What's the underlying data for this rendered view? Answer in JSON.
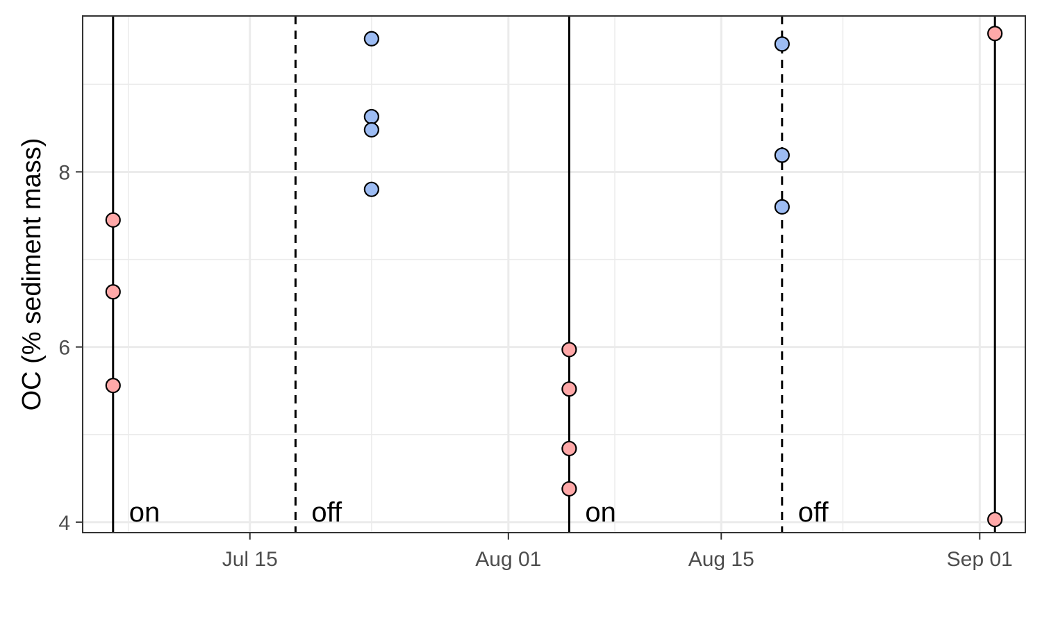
{
  "chart_data": {
    "type": "scatter",
    "title": "",
    "xlabel": "",
    "ylabel": "OC (% sediment mass)",
    "xlim": [
      "2019-07-04",
      "2019-09-04"
    ],
    "ylim": [
      3.88,
      9.78
    ],
    "grid": true,
    "legend": "none",
    "x_ticks": [
      {
        "date": "2019-07-15",
        "label": "Jul 15"
      },
      {
        "date": "2019-08-01",
        "label": "Aug 01"
      },
      {
        "date": "2019-08-15",
        "label": "Aug 15"
      },
      {
        "date": "2019-09-01",
        "label": "Sep 01"
      }
    ],
    "x_minor_ticks": [
      "2019-07-07",
      "2019-07-23",
      "2019-08-08",
      "2019-08-23"
    ],
    "y_ticks": [
      4,
      6,
      8
    ],
    "y_minor_ticks": [
      5,
      7,
      9
    ],
    "events": [
      {
        "date": "2019-07-06",
        "style": "solid",
        "label": "on"
      },
      {
        "date": "2019-07-18",
        "style": "dashed",
        "label": "off"
      },
      {
        "date": "2019-08-05",
        "style": "solid",
        "label": "on"
      },
      {
        "date": "2019-08-19",
        "style": "dashed",
        "label": "off"
      },
      {
        "date": "2019-09-02",
        "style": "solid",
        "label": ""
      }
    ],
    "series": [
      {
        "color": "#ffa8a8",
        "points": [
          {
            "x": "2019-07-06",
            "y": 7.45
          },
          {
            "x": "2019-07-06",
            "y": 6.63
          },
          {
            "x": "2019-07-06",
            "y": 5.56
          },
          {
            "x": "2019-08-05",
            "y": 5.97
          },
          {
            "x": "2019-08-05",
            "y": 5.52
          },
          {
            "x": "2019-08-05",
            "y": 4.84
          },
          {
            "x": "2019-08-05",
            "y": 4.38
          },
          {
            "x": "2019-09-02",
            "y": 9.58
          },
          {
            "x": "2019-09-02",
            "y": 4.03
          }
        ]
      },
      {
        "color": "#9dbcf3",
        "points": [
          {
            "x": "2019-07-23",
            "y": 9.52
          },
          {
            "x": "2019-07-23",
            "y": 8.63
          },
          {
            "x": "2019-07-23",
            "y": 8.48
          },
          {
            "x": "2019-07-23",
            "y": 7.8
          },
          {
            "x": "2019-08-19",
            "y": 9.46
          },
          {
            "x": "2019-08-19",
            "y": 8.19
          },
          {
            "x": "2019-08-19",
            "y": 7.6
          }
        ]
      }
    ],
    "colors": {
      "grid": "#ebebeb",
      "frame": "#333333",
      "event_line": "#000000",
      "point_stroke": "#000000"
    }
  }
}
